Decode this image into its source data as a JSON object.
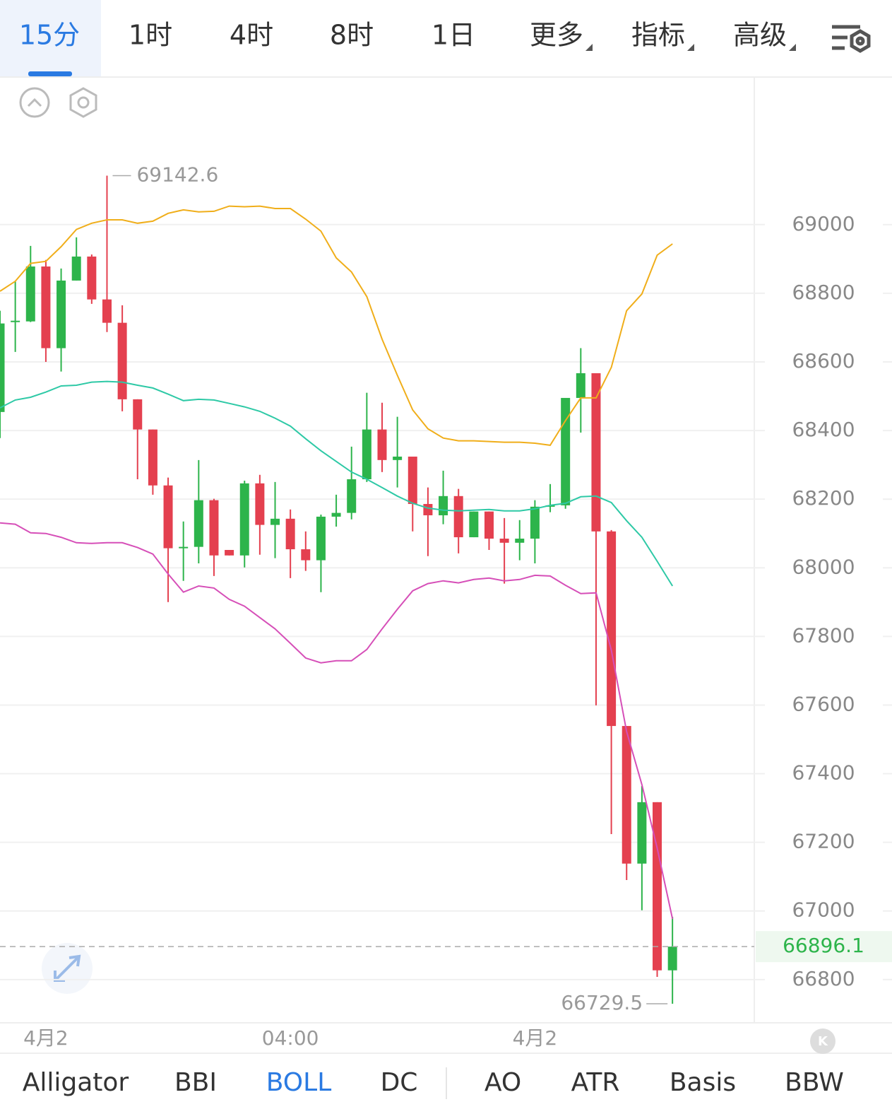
{
  "toolbar": {
    "tabs": [
      "15分",
      "1时",
      "4时",
      "8时",
      "1日",
      "更多",
      "指标",
      "高级"
    ],
    "active": 0
  },
  "chart_data": {
    "type": "candlestick",
    "categories": [
      null,
      null,
      null,
      "4月2",
      null,
      null,
      null,
      null,
      null,
      null,
      null,
      null,
      null,
      null,
      null,
      null,
      null,
      null,
      null,
      "04:00",
      null,
      null,
      null,
      null,
      null,
      null,
      null,
      null,
      null,
      null,
      null,
      null,
      null,
      null,
      null,
      "4月2",
      null,
      null,
      null,
      null,
      null,
      null,
      null,
      null,
      null
    ],
    "open": [
      68454,
      68716,
      68718,
      68878,
      68640,
      68837,
      68907,
      68782,
      68714,
      68491,
      68403,
      68240,
      68057,
      68061,
      68197,
      68052,
      68036,
      68246,
      68125,
      68143,
      68054,
      68022,
      68149,
      68160,
      68258,
      68403,
      68314,
      68324,
      68186,
      68153,
      68209,
      68089,
      68164,
      68085,
      68073,
      68085,
      68178,
      68182,
      68495,
      68567,
      68106,
      67539,
      67138,
      67317,
      66827
    ],
    "high": [
      68749,
      68835,
      68938,
      68897,
      68872,
      68963,
      68913,
      69142.6,
      68765,
      68491,
      68403,
      68263,
      68135,
      68314,
      68201,
      68052,
      68254,
      68271,
      68250,
      68170,
      68106,
      68155,
      68213,
      68353,
      68510,
      68481,
      68440,
      68324,
      68234,
      68283,
      68230,
      68164,
      68164,
      68145,
      68139,
      68197,
      68244,
      68495,
      68640,
      68567,
      68110,
      67539,
      67364,
      67317,
      66983
    ],
    "low": [
      68378,
      68629,
      68716,
      68600,
      68572,
      68837,
      68769,
      68687,
      68456,
      68258,
      68213,
      67900,
      67962,
      68013,
      67976,
      68036,
      68001,
      68038,
      68028,
      67970,
      67991,
      67929,
      68120,
      68141,
      68250,
      68279,
      68234,
      68106,
      68034,
      68127,
      68042,
      68089,
      68052,
      67954,
      68022,
      68013,
      68162,
      68172,
      68394,
      67599,
      67224,
      67090,
      67002,
      66808,
      66729.5
    ],
    "close": [
      68712,
      68720,
      68878,
      68640,
      68837,
      68907,
      68782,
      68714,
      68491,
      68403,
      68240,
      68057,
      68061,
      68197,
      68036,
      68036,
      68246,
      68125,
      68143,
      68054,
      68022,
      68149,
      68160,
      68258,
      68403,
      68314,
      68324,
      68186,
      68153,
      68209,
      68089,
      68164,
      68085,
      68073,
      68085,
      68178,
      68182,
      68495,
      68567,
      68106,
      67539,
      67138,
      67317,
      66827,
      66896.1
    ],
    "up_color": "#2db44b",
    "down_color": "#e4404f",
    "lines": [
      {
        "color": "#f0ae1a",
        "values": [
          68806,
          68835,
          68887,
          68893,
          68936,
          68986,
          69004,
          69014,
          69014,
          69004,
          69010,
          69033,
          69043,
          69037,
          69039,
          69054,
          69052,
          69054,
          69047,
          69047,
          69016,
          68981,
          68903,
          68862,
          68790,
          68666,
          68561,
          68460,
          68405,
          68378,
          68370,
          68370,
          68368,
          68366,
          68366,
          68363,
          68357,
          68429,
          68495,
          68495,
          68584,
          68749,
          68798,
          68911,
          68944
        ]
      },
      {
        "color": "#2ec9a6",
        "values": [
          68466,
          68489,
          68497,
          68512,
          68530,
          68532,
          68541,
          68543,
          68541,
          68532,
          68524,
          68506,
          68487,
          68491,
          68489,
          68479,
          68469,
          68456,
          68436,
          68413,
          68376,
          68341,
          68310,
          68279,
          68258,
          68234,
          68209,
          68188,
          68174,
          68168,
          68166,
          68168,
          68170,
          68166,
          68166,
          68172,
          68182,
          68188,
          68207,
          68209,
          68190,
          68137,
          68089,
          68019,
          67947
        ]
      },
      {
        "color": "#d64fb8",
        "values": [
          68131,
          68127,
          68102,
          68100,
          68089,
          68073,
          68071,
          68073,
          68073,
          68059,
          68040,
          67982,
          67929,
          67947,
          67941,
          67908,
          67888,
          67855,
          67822,
          67780,
          67737,
          67723,
          67729,
          67729,
          67762,
          67822,
          67879,
          67933,
          67954,
          67962,
          67956,
          67966,
          67970,
          67962,
          67966,
          67978,
          67976,
          67949,
          67925,
          67927,
          67760,
          67523,
          67368,
          67183,
          66977
        ]
      }
    ],
    "ylim": [
      66674,
      69428
    ],
    "yticks": [
      66800,
      67000,
      67200,
      67400,
      67600,
      67800,
      68000,
      68200,
      68400,
      68600,
      68800,
      69000
    ],
    "grid": true
  },
  "indicator_bar": {
    "items": [
      "Alligator",
      "BBI",
      "BOLL",
      "DC",
      "AO",
      "ATR",
      "Basis",
      "BBW"
    ],
    "active": 2
  }
}
